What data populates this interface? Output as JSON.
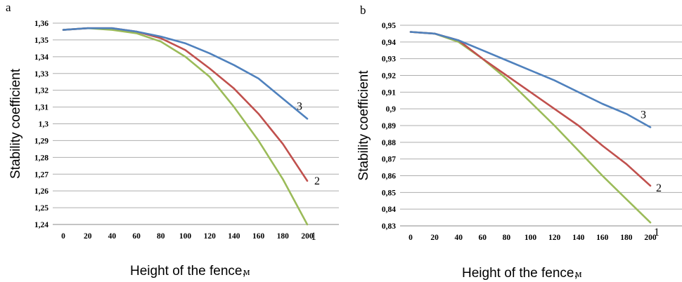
{
  "chart_data": [
    {
      "panel": "a",
      "type": "line",
      "ylabel": "Stability coefficient",
      "xlabel": "Height of the fence,",
      "xunit": "м",
      "x_ticks": [
        "0",
        "20",
        "40",
        "60",
        "80",
        "100",
        "120",
        "140",
        "160",
        "180",
        "200"
      ],
      "y_ticks": [
        "1,24",
        "1,25",
        "1,26",
        "1,27",
        "1,28",
        "1,29",
        "1,3",
        "1,31",
        "1,32",
        "1,33",
        "1,34",
        "1,35",
        "1,36"
      ],
      "ylim": [
        1.24,
        1.36
      ],
      "xlim": [
        0,
        200
      ],
      "emphasized_gridlines": [
        1.27,
        1.3,
        1.32
      ],
      "series": [
        {
          "name": "1",
          "color": "#9bbb59",
          "x": [
            0,
            20,
            40,
            60,
            80,
            100,
            120,
            140,
            160,
            180,
            200
          ],
          "y": [
            1.356,
            1.357,
            1.356,
            1.354,
            1.349,
            1.34,
            1.328,
            1.31,
            1.29,
            1.267,
            1.24
          ]
        },
        {
          "name": "2",
          "color": "#c0504d",
          "x": [
            0,
            20,
            40,
            60,
            80,
            100,
            120,
            140,
            160,
            180,
            200
          ],
          "y": [
            1.356,
            1.357,
            1.357,
            1.355,
            1.351,
            1.344,
            1.333,
            1.321,
            1.306,
            1.288,
            1.266
          ]
        },
        {
          "name": "3",
          "color": "#4f81bd",
          "x": [
            0,
            20,
            40,
            60,
            80,
            100,
            120,
            140,
            160,
            180,
            200
          ],
          "y": [
            1.356,
            1.357,
            1.357,
            1.355,
            1.352,
            1.348,
            1.342,
            1.335,
            1.327,
            1.315,
            1.303
          ]
        }
      ]
    },
    {
      "panel": "b",
      "type": "line",
      "ylabel": "Stability coefficient",
      "xlabel": "Height of the fence,",
      "xunit": "м",
      "x_ticks": [
        "0",
        "20",
        "40",
        "60",
        "80",
        "100",
        "120",
        "140",
        "160",
        "180",
        "200"
      ],
      "y_ticks": [
        "0,83",
        "0,84",
        "0,85",
        "0,86",
        "0,87",
        "0,88",
        "0,89",
        "0,9",
        "0,91",
        "0,92",
        "0,93",
        "0,94",
        "0,95"
      ],
      "ylim": [
        0.83,
        0.95
      ],
      "xlim": [
        0,
        200
      ],
      "emphasized_gridlines": [
        0.94
      ],
      "series": [
        {
          "name": "1",
          "color": "#9bbb59",
          "x": [
            0,
            20,
            40,
            60,
            80,
            100,
            120,
            140,
            160,
            180,
            200
          ],
          "y": [
            0.946,
            0.945,
            0.94,
            0.93,
            0.918,
            0.904,
            0.89,
            0.875,
            0.86,
            0.846,
            0.832
          ]
        },
        {
          "name": "2",
          "color": "#c0504d",
          "x": [
            0,
            20,
            40,
            60,
            80,
            100,
            120,
            140,
            160,
            180,
            200
          ],
          "y": [
            0.946,
            0.945,
            0.941,
            0.93,
            0.92,
            0.91,
            0.9,
            0.89,
            0.878,
            0.867,
            0.854
          ]
        },
        {
          "name": "3",
          "color": "#4f81bd",
          "x": [
            0,
            20,
            40,
            60,
            80,
            100,
            120,
            140,
            160,
            180,
            200
          ],
          "y": [
            0.946,
            0.945,
            0.941,
            0.935,
            0.929,
            0.923,
            0.917,
            0.91,
            0.903,
            0.897,
            0.889
          ]
        }
      ]
    }
  ]
}
